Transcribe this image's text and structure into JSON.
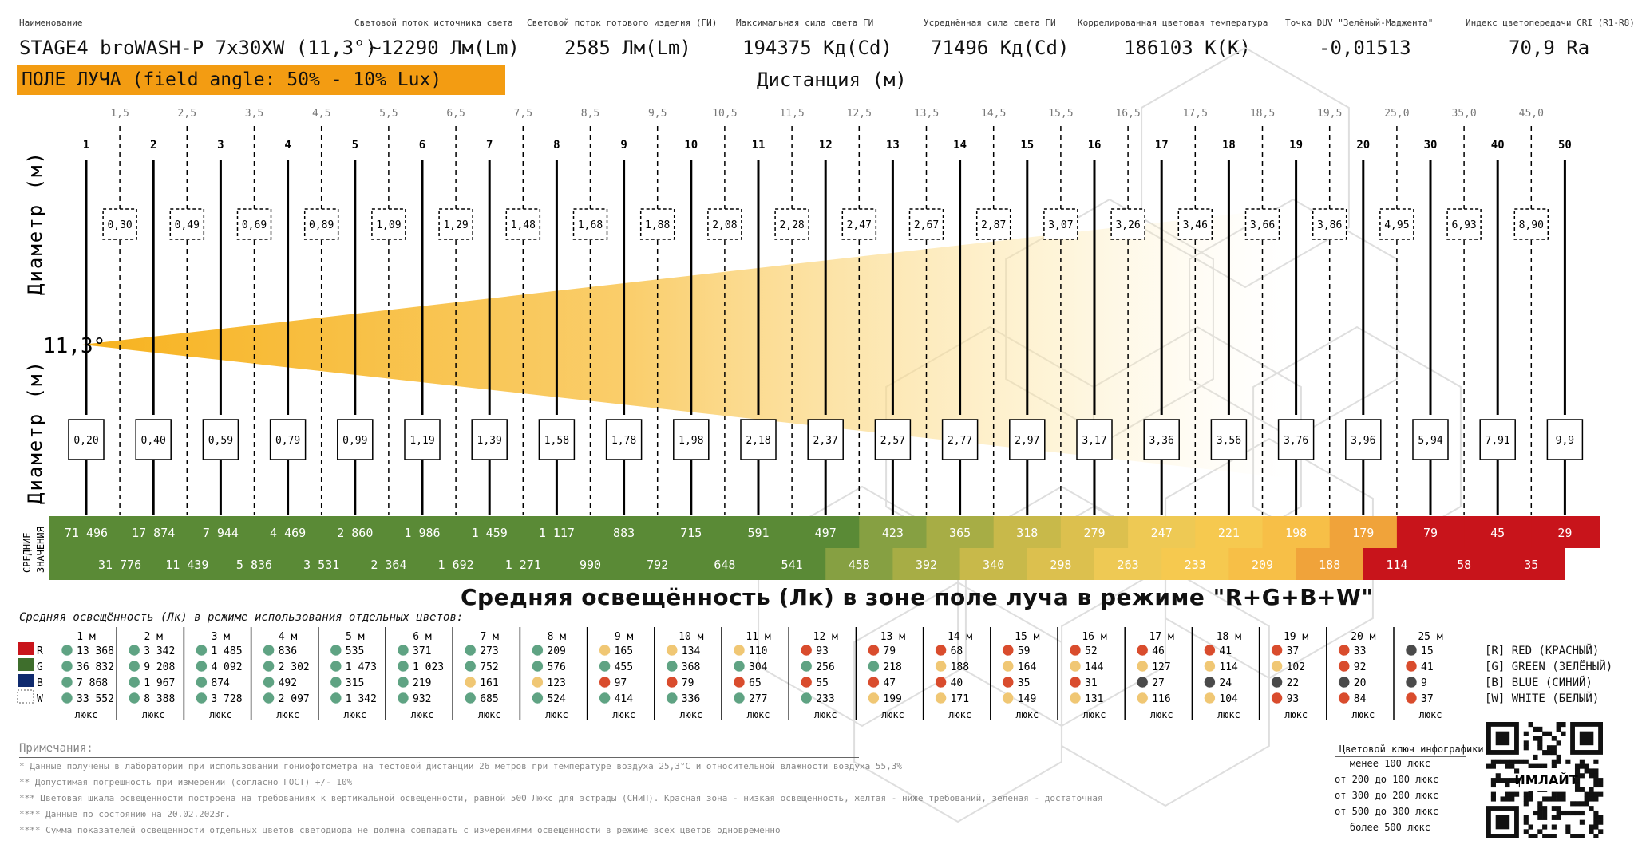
{
  "header": {
    "labels": [
      "Наименование",
      "Световой поток источника света",
      "Световой поток готового изделия (ГИ)",
      "Максимальная сила света ГИ",
      "Усреднённая сила света ГИ",
      "Коррелированная цветовая температура",
      "Точка DUV \"Зелёный-Маджента\"",
      "Индекс цветопередачи CRI (R1-R8)"
    ],
    "values": [
      "STAGE4 broWASH-P 7x30XW (11,3°)",
      "~12290 Лм(Lm)",
      "2585 Лм(Lm)",
      "194375 Кд(Cd)",
      "71496 Кд(Cd)",
      "186103 К(K)",
      "-0,01513",
      "70,9 Ra"
    ]
  },
  "field_label": "ПОЛЕ ЛУЧА (field angle: 50% - 10% Lux)",
  "distance_title": "Дистанция (м)",
  "diameter_label": "Диаметр (м)",
  "angle_label": "11,3°",
  "avg_label": [
    "СРЕДНИЕ",
    "ЗНАЧЕНИЯ"
  ],
  "mode_title": "Средняя освещённость (Лк) в зоне поле луча в режиме \"R+G+B+W\"",
  "sub_title": "Средняя освещённость (Лк) в режиме использования отдельных цветов:",
  "chart_data": {
    "type": "table",
    "title": "Дистанция (м)",
    "distances": [
      "1",
      "2",
      "3",
      "4",
      "5",
      "6",
      "7",
      "8",
      "9",
      "10",
      "11",
      "12",
      "13",
      "14",
      "15",
      "16",
      "17",
      "18",
      "19",
      "20",
      "30",
      "40",
      "50"
    ],
    "half_distances": [
      "1,5",
      "2,5",
      "3,5",
      "4,5",
      "5,5",
      "6,5",
      "7,5",
      "8,5",
      "9,5",
      "10,5",
      "11,5",
      "12,5",
      "13,5",
      "14,5",
      "15,5",
      "16,5",
      "17,5",
      "18,5",
      "19,5",
      "25,0",
      "35,0",
      "45,0"
    ],
    "diameter_half": [
      "0,30",
      "0,49",
      "0,69",
      "0,89",
      "1,09",
      "1,29",
      "1,48",
      "1,68",
      "1,88",
      "2,08",
      "2,28",
      "2,47",
      "2,67",
      "2,87",
      "3,07",
      "3,26",
      "3,46",
      "3,66",
      "3,86",
      "4,95",
      "6,93",
      "8,90"
    ],
    "diameter": [
      "0,20",
      "0,40",
      "0,59",
      "0,79",
      "0,99",
      "1,19",
      "1,39",
      "1,58",
      "1,78",
      "1,98",
      "2,18",
      "2,37",
      "2,57",
      "2,77",
      "2,97",
      "3,17",
      "3,36",
      "3,56",
      "3,76",
      "3,96",
      "5,94",
      "7,91",
      "9,9"
    ],
    "lux": [
      "71 496",
      "17 874",
      "7 944",
      "4 469",
      "2 860",
      "1 986",
      "1 459",
      "1 117",
      "883",
      "715",
      "591",
      "497",
      "423",
      "365",
      "318",
      "279",
      "247",
      "221",
      "198",
      "179",
      "79",
      "45",
      "29"
    ],
    "lux_half": [
      "31 776",
      "11 439",
      "5 836",
      "3 531",
      "2 364",
      "1 692",
      "1 271",
      "990",
      "792",
      "648",
      "541",
      "458",
      "392",
      "340",
      "298",
      "263",
      "233",
      "209",
      "188",
      "114",
      "58",
      "35"
    ],
    "lux_colors": [
      "#5a8a36",
      "#5a8a36",
      "#5a8a36",
      "#5a8a36",
      "#5a8a36",
      "#5a8a36",
      "#5a8a36",
      "#5a8a36",
      "#5a8a36",
      "#5a8a36",
      "#5a8a36",
      "#5a8a36",
      "#86a042",
      "#a7ad45",
      "#c8b94a",
      "#dcc04e",
      "#eec954",
      "#f6c94f",
      "#f7bf47",
      "#f0a33a",
      "#c8141b",
      "#c8141b",
      "#c8141b"
    ],
    "lux_half_colors": [
      "#5a8a36",
      "#5a8a36",
      "#5a8a36",
      "#5a8a36",
      "#5a8a36",
      "#5a8a36",
      "#5a8a36",
      "#5a8a36",
      "#5a8a36",
      "#5a8a36",
      "#5a8a36",
      "#86a042",
      "#a7ad45",
      "#c8b94a",
      "#dcc04e",
      "#eec954",
      "#f6c94f",
      "#f7bf47",
      "#f0a33a",
      "#c8141b",
      "#c8141b",
      "#c8141b"
    ]
  },
  "per_color": {
    "labels": [
      "R",
      "G",
      "B",
      "W"
    ],
    "swatches": [
      "#c8141b",
      "#3e6e2c",
      "#0f2a6e",
      "#ffffff"
    ],
    "unit": "люкс",
    "columns": [
      {
        "d": "1 м",
        "v": [
          "13 368",
          "36 832",
          "7 868",
          "33 552"
        ],
        "c": [
          "g",
          "g",
          "g",
          "g"
        ]
      },
      {
        "d": "2 м",
        "v": [
          "3 342",
          "9 208",
          "1 967",
          "8 388"
        ],
        "c": [
          "g",
          "g",
          "g",
          "g"
        ]
      },
      {
        "d": "3 м",
        "v": [
          "1 485",
          "4 092",
          "874",
          "3 728"
        ],
        "c": [
          "g",
          "g",
          "g",
          "g"
        ]
      },
      {
        "d": "4 м",
        "v": [
          "836",
          "2 302",
          "492",
          "2 097"
        ],
        "c": [
          "g",
          "g",
          "g",
          "g"
        ]
      },
      {
        "d": "5 м",
        "v": [
          "535",
          "1 473",
          "315",
          "1 342"
        ],
        "c": [
          "g",
          "g",
          "g",
          "g"
        ]
      },
      {
        "d": "6 м",
        "v": [
          "371",
          "1 023",
          "219",
          "932"
        ],
        "c": [
          "g",
          "g",
          "g",
          "g"
        ]
      },
      {
        "d": "7 м",
        "v": [
          "273",
          "752",
          "161",
          "685"
        ],
        "c": [
          "g",
          "g",
          "y",
          "g"
        ]
      },
      {
        "d": "8 м",
        "v": [
          "209",
          "576",
          "123",
          "524"
        ],
        "c": [
          "g",
          "g",
          "y",
          "g"
        ]
      },
      {
        "d": "9 м",
        "v": [
          "165",
          "455",
          "97",
          "414"
        ],
        "c": [
          "y",
          "g",
          "r",
          "g"
        ]
      },
      {
        "d": "10 м",
        "v": [
          "134",
          "368",
          "79",
          "336"
        ],
        "c": [
          "y",
          "g",
          "r",
          "g"
        ]
      },
      {
        "d": "11 м",
        "v": [
          "110",
          "304",
          "65",
          "277"
        ],
        "c": [
          "y",
          "g",
          "r",
          "g"
        ]
      },
      {
        "d": "12 м",
        "v": [
          "93",
          "256",
          "55",
          "233"
        ],
        "c": [
          "r",
          "g",
          "r",
          "g"
        ]
      },
      {
        "d": "13 м",
        "v": [
          "79",
          "218",
          "47",
          "199"
        ],
        "c": [
          "r",
          "g",
          "r",
          "y"
        ]
      },
      {
        "d": "14 м",
        "v": [
          "68",
          "188",
          "40",
          "171"
        ],
        "c": [
          "r",
          "y",
          "r",
          "y"
        ]
      },
      {
        "d": "15 м",
        "v": [
          "59",
          "164",
          "35",
          "149"
        ],
        "c": [
          "r",
          "y",
          "r",
          "y"
        ]
      },
      {
        "d": "16 м",
        "v": [
          "52",
          "144",
          "31",
          "131"
        ],
        "c": [
          "r",
          "y",
          "r",
          "y"
        ]
      },
      {
        "d": "17 м",
        "v": [
          "46",
          "127",
          "27",
          "116"
        ],
        "c": [
          "r",
          "y",
          "k",
          "y"
        ]
      },
      {
        "d": "18 м",
        "v": [
          "41",
          "114",
          "24",
          "104"
        ],
        "c": [
          "r",
          "y",
          "k",
          "y"
        ]
      },
      {
        "d": "19 м",
        "v": [
          "37",
          "102",
          "22",
          "93"
        ],
        "c": [
          "r",
          "y",
          "k",
          "r"
        ]
      },
      {
        "d": "20 м",
        "v": [
          "33",
          "92",
          "20",
          "84"
        ],
        "c": [
          "r",
          "r",
          "k",
          "r"
        ]
      },
      {
        "d": "25 м",
        "v": [
          "15",
          "41",
          "9",
          "37"
        ],
        "c": [
          "k",
          "r",
          "k",
          "r"
        ]
      }
    ],
    "dot_colors": {
      "g": "#5fa383",
      "y": "#f0c774",
      "r": "#d94c2d",
      "k": "#4a4a4a"
    }
  },
  "legend": [
    "[R] RED (КРАСНЫЙ)",
    "[G] GREEN (ЗЕЛЁНЫЙ)",
    "[B] BLUE (СИНИЙ)",
    "[W] WHITE (БЕЛЫЙ)"
  ],
  "notes": {
    "title": "Примечания:",
    "lines": [
      "* Данные получены в лаборатории при использовании гониофотометра на тестовой дистанции 26 метров при температуре воздуха 25,3°C и относительной влажности воздуха 55,3%",
      "** Допустимая погрешность при измерении (согласно ГОСТ) +/- 10%",
      "*** Цветовая шкала освещённости построена на требованиях к вертикальной освещённости, равной 500 Люкс для эстрады (СНиП). Красная зона - низкая освещённость, желтая - ниже требований, зеленая - достаточная",
      "**** Данные по состоянию на 20.02.2023г.",
      "**** Сумма показателей освещённости отдельных цветов светодиода не должна совпадать с измерениями освещённости в режиме всех цветов одновременно"
    ]
  },
  "color_key": {
    "title": "Цветовой ключ инфографики",
    "items": [
      {
        "label": "менее 100 люкс",
        "color": "#c8141b"
      },
      {
        "label": "от 200 до 100 люкс",
        "color": "#f0a33a"
      },
      {
        "label": "от 300 до 200 люкс",
        "color": "#f6c94f"
      },
      {
        "label": "от 500 до 300 люкс",
        "color": "#a7ad45"
      },
      {
        "label": "более 500 люкс",
        "color": "#5a8a36"
      }
    ]
  },
  "qr_text": "ИМЛАЙТ"
}
